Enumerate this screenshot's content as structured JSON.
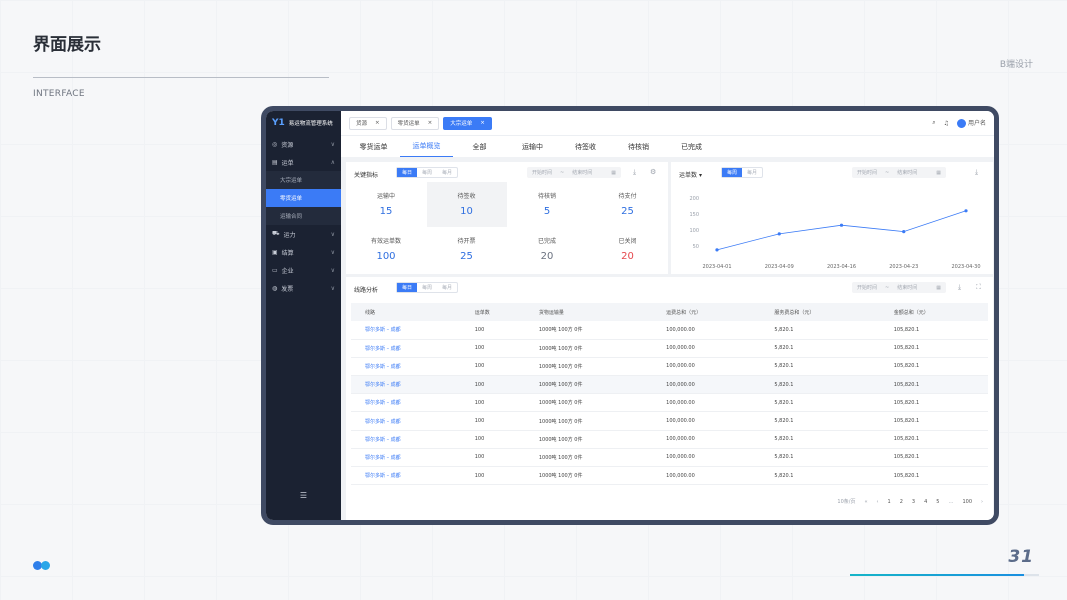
{
  "slide": {
    "title": "界面展示",
    "subtitle": "INTERFACE",
    "tag": "B端设计",
    "page_number": "31",
    "progress": 0.92
  },
  "app": {
    "logo": "Y1",
    "name": "易运物流管理系统",
    "user": "用户名"
  },
  "sidebar": {
    "items": [
      {
        "label": "资源",
        "icon": "resource-icon",
        "chevron": "∨"
      },
      {
        "label": "运单",
        "icon": "waybill-icon",
        "chevron": "∧",
        "children": [
          {
            "label": "大宗运单"
          },
          {
            "label": "零货运单",
            "active": true
          },
          {
            "label": "运输合同"
          }
        ]
      },
      {
        "label": "运力",
        "icon": "truck-icon",
        "chevron": "∨"
      },
      {
        "label": "结算",
        "icon": "settlement-icon",
        "chevron": "∨"
      },
      {
        "label": "企业",
        "icon": "enterprise-icon",
        "chevron": "∨"
      },
      {
        "label": "发票",
        "icon": "invoice-icon",
        "chevron": "∨"
      }
    ],
    "fold_icon": "☰"
  },
  "tabs": [
    {
      "label": "货源",
      "active": false
    },
    {
      "label": "零货运单",
      "active": false
    },
    {
      "label": "大宗运单",
      "active": true
    }
  ],
  "subtabs": [
    {
      "label": "零货运单",
      "active": false
    },
    {
      "label": "运单概览",
      "active": true
    },
    {
      "label": "全部",
      "active": false
    },
    {
      "label": "运输中",
      "active": false
    },
    {
      "label": "待签收",
      "active": false
    },
    {
      "label": "待核销",
      "active": false
    },
    {
      "label": "已完成",
      "active": false
    }
  ],
  "kpi": {
    "title": "关键指标",
    "segments": [
      "每日",
      "每周",
      "每月"
    ],
    "range": {
      "start": "开始时间",
      "sep": "~",
      "end": "结束时间"
    },
    "metrics": [
      {
        "label": "运输中",
        "value": "15",
        "color": "#2f6fe0"
      },
      {
        "label": "待签收",
        "value": "10",
        "color": "#2f6fe0",
        "highlight": true
      },
      {
        "label": "待核销",
        "value": "5",
        "color": "#2f6fe0"
      },
      {
        "label": "待支付",
        "value": "25",
        "color": "#2f6fe0"
      },
      {
        "label": "有效运单数",
        "value": "100",
        "color": "#2f6fe0"
      },
      {
        "label": "待开票",
        "value": "25",
        "color": "#2f6fe0"
      },
      {
        "label": "已完成",
        "value": "20",
        "color": "#6b7280"
      },
      {
        "label": "已关闭",
        "value": "20",
        "color": "#e5484d"
      }
    ]
  },
  "trend": {
    "select_label": "运单数",
    "segments": [
      "每周",
      "每月"
    ],
    "range": {
      "start": "开始时间",
      "sep": "~",
      "end": "结束时间"
    }
  },
  "chart_data": {
    "type": "line",
    "x": [
      "2023-04-01",
      "2023-04-09",
      "2023-04-16",
      "2023-04-23",
      "2023-04-30"
    ],
    "series": [
      {
        "values": [
          38,
          88,
          115,
          95,
          160
        ]
      }
    ],
    "yticks": [
      "200",
      "150",
      "100",
      "50"
    ],
    "ylim": [
      0,
      200
    ],
    "grid": false,
    "color": "#3b7bf6"
  },
  "routes": {
    "title": "线路分析",
    "segments": [
      "每日",
      "每周",
      "每月"
    ],
    "range": {
      "start": "开始时间",
      "sep": "~",
      "end": "结束时间"
    },
    "columns": [
      "线路",
      "运单数",
      "货物运输量",
      "运费总和（元）",
      "服务费总和（元）",
      "金额总和（元）"
    ],
    "rows": [
      [
        "鄂尔多斯 – 成都",
        "100",
        "1000吨   100方   0件",
        "100,000.00",
        "5,820.1",
        "105,820.1"
      ],
      [
        "鄂尔多斯 – 成都",
        "100",
        "1000吨   100方   0件",
        "100,000.00",
        "5,820.1",
        "105,820.1"
      ],
      [
        "鄂尔多斯 – 成都",
        "100",
        "1000吨   100方   0件",
        "100,000.00",
        "5,820.1",
        "105,820.1"
      ],
      [
        "鄂尔多斯 – 成都",
        "100",
        "1000吨   100方   0件",
        "100,000.00",
        "5,820.1",
        "105,820.1"
      ],
      [
        "鄂尔多斯 – 成都",
        "100",
        "1000吨   100方   0件",
        "100,000.00",
        "5,820.1",
        "105,820.1"
      ],
      [
        "鄂尔多斯 – 成都",
        "100",
        "1000吨   100方   0件",
        "100,000.00",
        "5,820.1",
        "105,820.1"
      ],
      [
        "鄂尔多斯 – 成都",
        "100",
        "1000吨   100方   0件",
        "100,000.00",
        "5,820.1",
        "105,820.1"
      ],
      [
        "鄂尔多斯 – 成都",
        "100",
        "1000吨   100方   0件",
        "100,000.00",
        "5,820.1",
        "105,820.1"
      ],
      [
        "鄂尔多斯 – 成都",
        "100",
        "1000吨   100方   0件",
        "100,000.00",
        "5,820.1",
        "105,820.1"
      ]
    ],
    "pager": {
      "page_size": "10条/页",
      "pages": [
        "1",
        "2",
        "3",
        "4",
        "5",
        "…",
        "100"
      ],
      "prev": "‹",
      "next": "›",
      "first": "«"
    }
  }
}
